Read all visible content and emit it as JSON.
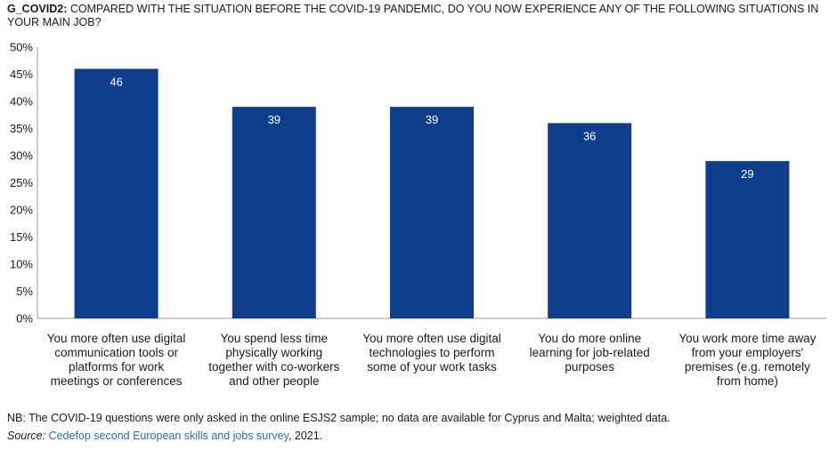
{
  "header": {
    "code": "G_COVID2:",
    "text": "COMPARED WITH THE SITUATION BEFORE THE COVID-19 PANDEMIC, DO YOU NOW EXPERIENCE ANY OF THE FOLLOWING SITUATIONS IN YOUR MAIN JOB?"
  },
  "chart_data": {
    "type": "bar",
    "categories": [
      [
        "You more often use digital",
        "communication tools or",
        "platforms for work",
        "meetings or conferences"
      ],
      [
        "You spend less time",
        "physically working",
        "together with co-workers",
        "and other people"
      ],
      [
        "You more often use digital",
        "technologies to perform",
        "some of your work tasks"
      ],
      [
        "You do more online",
        "learning for job-related",
        "purposes"
      ],
      [
        "You work more time away",
        "from your employers'",
        "premises (e.g. remotely",
        "from home)"
      ]
    ],
    "values": [
      46,
      39,
      39,
      36,
      29
    ],
    "data_labels": [
      "46",
      "39",
      "39",
      "36",
      "29"
    ],
    "ylim": [
      0,
      50
    ],
    "yticks": [
      "0%",
      "5%",
      "10%",
      "15%",
      "20%",
      "25%",
      "30%",
      "35%",
      "40%",
      "45%",
      "50%"
    ],
    "ytick_values": [
      0,
      5,
      10,
      15,
      20,
      25,
      30,
      35,
      40,
      45,
      50
    ],
    "grid": false,
    "bar_color": "#0f3f8c",
    "label_color": "#ffffff"
  },
  "footer": {
    "note": "NB: The COVID-19 questions were only asked in the online ESJS2 sample; no data are available for Cyprus and Malta; weighted data.",
    "source_label": "Source:",
    "source_link": "Cedefop second European skills and jobs survey",
    "source_year": ", 2021."
  }
}
